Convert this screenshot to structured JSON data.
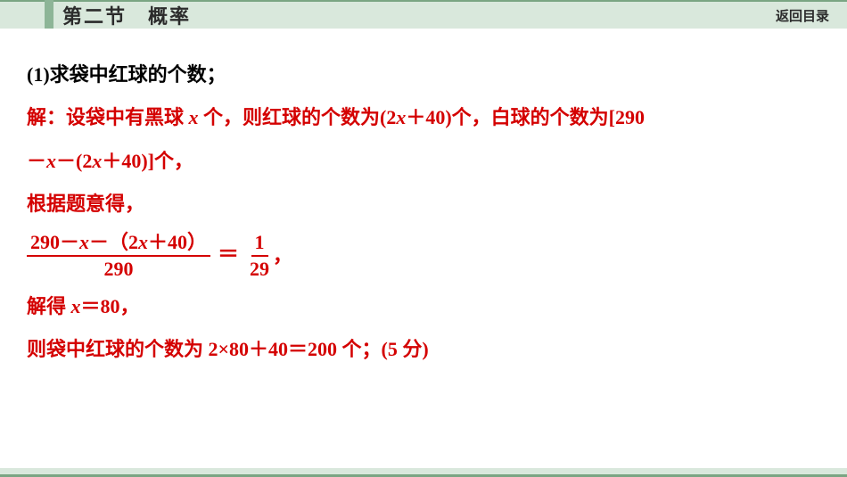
{
  "header": {
    "title": "第二节　概率",
    "back": "返回目录",
    "accent_color": "#8db597",
    "bg_color": "#d9e8dc",
    "border_color": "#7aa583"
  },
  "question": "(1)求袋中红球的个数；",
  "solution": {
    "line1_a": "解：设袋中有黑球 ",
    "line1_var": "x",
    "line1_b": " 个，则红球的个数为(2",
    "line1_var2": "x",
    "line1_c": "＋40)个，白球的个数为[290",
    "line2_a": "－",
    "line2_var": "x",
    "line2_b": "－(2",
    "line2_var2": "x",
    "line2_c": "＋40)]个，",
    "line3": "根据题意得，",
    "frac1_num_a": "290－",
    "frac1_num_var": "x",
    "frac1_num_b": "－（2",
    "frac1_num_var2": "x",
    "frac1_num_c": "＋40）",
    "frac1_den": "290",
    "eq": "＝",
    "frac2_num": "1",
    "frac2_den": "29",
    "comma": "，",
    "line5_a": "解得 ",
    "line5_var": "x",
    "line5_b": "＝80，",
    "line6": "则袋中红球的个数为 2×80＋40＝200 个；(5 分)"
  },
  "colors": {
    "question": "#000000",
    "solution": "#d40000"
  },
  "fonts": {
    "body_size": 22,
    "header_size": 22
  }
}
